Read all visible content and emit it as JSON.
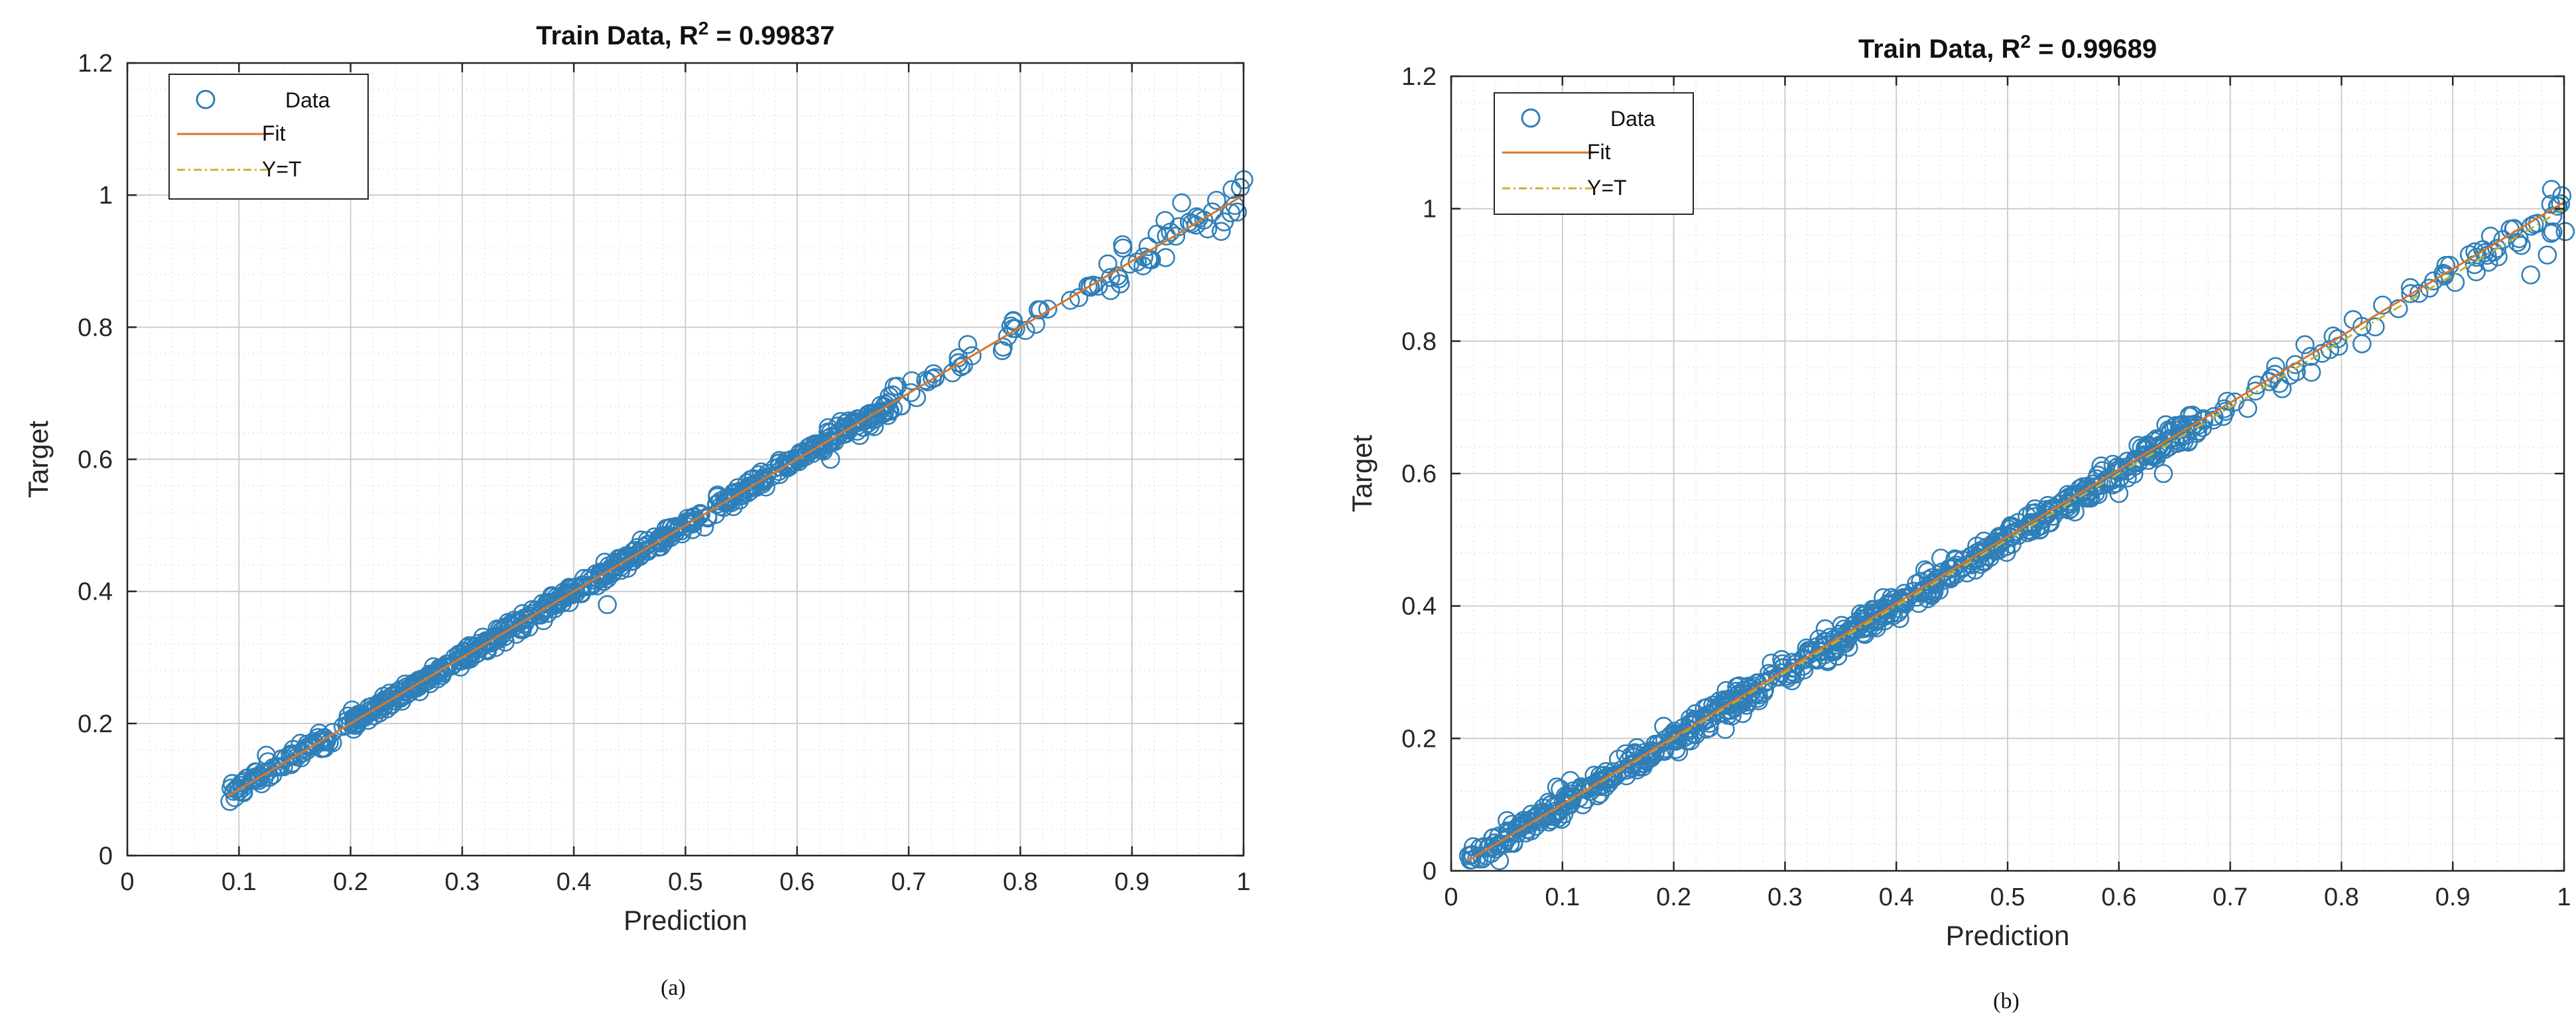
{
  "colors": {
    "data": "#2f7fb8",
    "fit": "#d9762b",
    "ident": "#c8b22a",
    "grid_major": "#c9c9c9",
    "grid_minor": "#e2e2e2",
    "axis": "#262626",
    "background": "#ffffff"
  },
  "chart_data": [
    {
      "type": "scatter",
      "panel_label": "(a)",
      "title_prefix": "Train Data, R",
      "title_sup": "2",
      "title_suffix": " = 0.99837",
      "xlabel": "Prediction",
      "ylabel": "Target",
      "xlim": [
        0,
        1
      ],
      "ylim": [
        0,
        1.2
      ],
      "xticks": [
        0,
        0.1,
        0.2,
        0.3,
        0.4,
        0.5,
        0.6,
        0.7,
        0.8,
        0.9,
        1
      ],
      "xtick_labels": [
        "0",
        "0.1",
        "0.2",
        "0.3",
        "0.4",
        "0.5",
        "0.6",
        "0.7",
        "0.8",
        "0.9",
        "1"
      ],
      "yticks": [
        0,
        0.2,
        0.4,
        0.6,
        0.8,
        1,
        1.2
      ],
      "ytick_labels": [
        "0",
        "0.2",
        "0.4",
        "0.6",
        "0.8",
        "1",
        "1.2"
      ],
      "legend": [
        "Data",
        "Fit",
        "Y=T"
      ],
      "legend_position": "top-left",
      "grid": true,
      "minor_grid": true,
      "fit_line": {
        "slope": 1.0,
        "intercept": 0.0,
        "x_range": [
          0.09,
          1.0
        ]
      },
      "identity_line": {
        "x_range": [
          0.09,
          1.0
        ]
      },
      "data_seed": 11,
      "data_spread": 0.008,
      "data_clusters": [
        {
          "x_range": [
            0.09,
            0.68
          ],
          "n": 620,
          "noise": 0.006
        },
        {
          "x_range": [
            0.68,
            0.86
          ],
          "n": 45,
          "noise": 0.01
        },
        {
          "x_range": [
            0.86,
            1.0
          ],
          "n": 40,
          "noise": 0.014
        }
      ],
      "outliers": [
        {
          "x": 0.43,
          "y": 0.38
        },
        {
          "x": 0.63,
          "y": 0.6
        },
        {
          "x": 0.98,
          "y": 0.945
        },
        {
          "x": 0.96,
          "y": 0.965
        },
        {
          "x": 0.155,
          "y": 0.17
        },
        {
          "x": 0.44,
          "y": 0.45
        }
      ]
    },
    {
      "type": "scatter",
      "panel_label": "(b)",
      "title_prefix": "Train Data, R",
      "title_sup": "2",
      "title_suffix": " = 0.99689",
      "xlabel": "Prediction",
      "ylabel": "Target",
      "xlim": [
        0,
        1
      ],
      "ylim": [
        0,
        1.2
      ],
      "xticks": [
        0,
        0.1,
        0.2,
        0.3,
        0.4,
        0.5,
        0.6,
        0.7,
        0.8,
        0.9,
        1
      ],
      "xtick_labels": [
        "0",
        "0.1",
        "0.2",
        "0.3",
        "0.4",
        "0.5",
        "0.6",
        "0.7",
        "0.8",
        "0.9",
        "1"
      ],
      "yticks": [
        0,
        0.2,
        0.4,
        0.6,
        0.8,
        1,
        1.2
      ],
      "ytick_labels": [
        "0",
        "0.2",
        "0.4",
        "0.6",
        "0.8",
        "1",
        "1.2"
      ],
      "legend": [
        "Data",
        "Fit",
        "Y=T"
      ],
      "legend_position": "top-left",
      "grid": true,
      "minor_grid": true,
      "fit_line": {
        "slope": 1.01,
        "intercept": 0.0,
        "x_range": [
          0.015,
          1.0
        ]
      },
      "identity_line": {
        "x_range": [
          0.015,
          1.0
        ]
      },
      "data_seed": 29,
      "data_spread": 0.01,
      "data_clusters": [
        {
          "x_range": [
            0.015,
            0.68
          ],
          "n": 720,
          "noise": 0.009
        },
        {
          "x_range": [
            0.68,
            0.92
          ],
          "n": 45,
          "noise": 0.012
        },
        {
          "x_range": [
            0.92,
            1.0
          ],
          "n": 30,
          "noise": 0.02
        }
      ],
      "outliers": [
        {
          "x": 0.64,
          "y": 0.6
        },
        {
          "x": 0.97,
          "y": 0.9
        },
        {
          "x": 0.99,
          "y": 0.965
        },
        {
          "x": 0.985,
          "y": 0.93
        },
        {
          "x": 0.6,
          "y": 0.57
        },
        {
          "x": 0.955,
          "y": 0.97
        }
      ]
    }
  ]
}
